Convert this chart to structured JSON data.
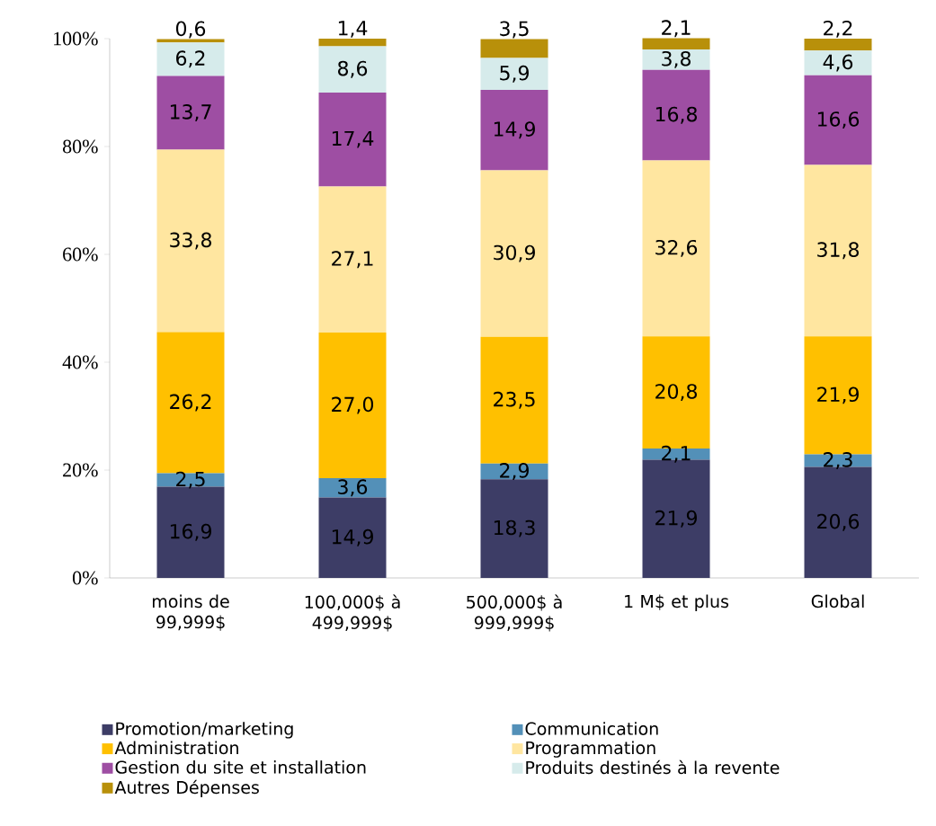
{
  "chart_data": {
    "type": "bar",
    "stacked": true,
    "legend": "bottom",
    "categories": [
      "moins de 99,999$",
      "100,000$ à 499,999$",
      "500,000$ à 999,999$",
      "1 M$ et plus",
      "Global"
    ],
    "ylim": [
      0,
      100
    ],
    "yticks": [
      {
        "value": 0,
        "label": "0%"
      },
      {
        "value": 20,
        "label": "20%"
      },
      {
        "value": 40,
        "label": "40%"
      },
      {
        "value": 60,
        "label": "60%"
      },
      {
        "value": 80,
        "label": "80%"
      },
      {
        "value": 100,
        "label": "100%"
      }
    ],
    "series": [
      {
        "name": "Promotion/marketing",
        "color": "#3d3d66",
        "values": [
          16.9,
          14.9,
          18.3,
          21.9,
          20.6
        ],
        "value_labels": [
          "16,9",
          "14,9",
          "18,3",
          "21,9",
          "20,6"
        ]
      },
      {
        "name": "Communication",
        "color": "#5390b8",
        "values": [
          2.5,
          3.6,
          2.9,
          2.1,
          2.3
        ],
        "value_labels": [
          "2,5",
          "3,6",
          "2,9",
          "2,1",
          "2,3"
        ]
      },
      {
        "name": "Administration",
        "color": "#ffc000",
        "values": [
          26.2,
          27.0,
          23.5,
          20.8,
          21.9
        ],
        "value_labels": [
          "26,2",
          "27,0",
          "23,5",
          "20,8",
          "21,9"
        ]
      },
      {
        "name": "Programmation",
        "color": "#ffe6a0",
        "values": [
          33.8,
          27.1,
          30.9,
          32.6,
          31.8
        ],
        "value_labels": [
          "33,8",
          "27,1",
          "30,9",
          "32,6",
          "31,8"
        ]
      },
      {
        "name": "Gestion du site et installation",
        "color": "#9e4ea3",
        "values": [
          13.7,
          17.4,
          14.9,
          16.8,
          16.6
        ],
        "value_labels": [
          "13,7",
          "17,4",
          "14,9",
          "16,8",
          "16,6"
        ]
      },
      {
        "name": "Produits destinés à la revente",
        "color": "#d6ebeb",
        "values": [
          6.2,
          8.6,
          5.9,
          3.8,
          4.6
        ],
        "value_labels": [
          "6,2",
          "8,6",
          "5,9",
          "3,8",
          "4,6"
        ]
      },
      {
        "name": "Autres Dépenses",
        "color": "#b8900a",
        "values": [
          0.6,
          1.4,
          3.5,
          2.1,
          2.2
        ],
        "value_labels": [
          "0,6",
          "1,4",
          "3,5",
          "2,1",
          "2,2"
        ]
      }
    ]
  }
}
